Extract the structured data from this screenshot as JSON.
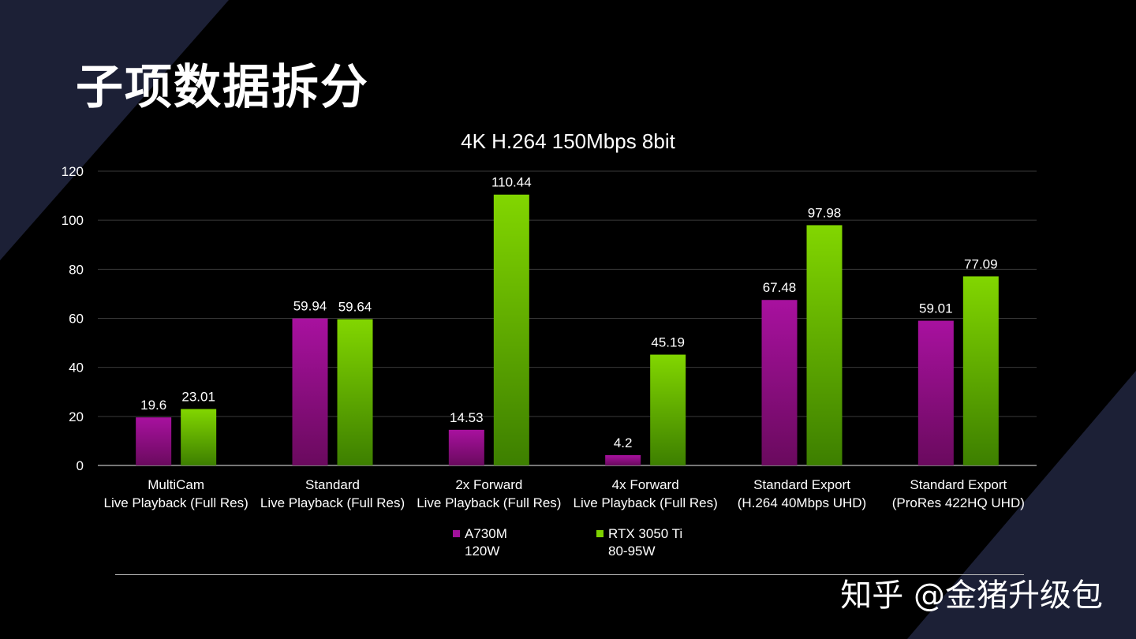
{
  "page_title": "子项数据拆分",
  "watermark": "知乎 @金猪升级包",
  "colors": {
    "background": "#000000",
    "decor_shape": "#1c2036",
    "series_a": "#a0109a",
    "series_b": "#7ed100",
    "grid": "#3a3a3a"
  },
  "legend": [
    {
      "line1": "A730M",
      "line2": "120W",
      "color": "#a0109a"
    },
    {
      "line1": "RTX 3050 Ti",
      "line2": "80-95W",
      "color": "#7ed100"
    }
  ],
  "chart_data": {
    "type": "bar",
    "title": "4K H.264 150Mbps 8bit",
    "xlabel": "",
    "ylabel": "",
    "ylim": [
      0,
      120
    ],
    "yticks": [
      0,
      20,
      40,
      60,
      80,
      100,
      120
    ],
    "grid": true,
    "legend_position": "bottom",
    "categories": [
      [
        "MultiCam",
        "Live Playback (Full Res)"
      ],
      [
        "Standard",
        "Live Playback (Full Res)"
      ],
      [
        "2x Forward",
        "Live Playback (Full Res)"
      ],
      [
        "4x Forward",
        "Live Playback (Full Res)"
      ],
      [
        "Standard Export",
        "(H.264 40Mbps UHD)"
      ],
      [
        "Standard Export",
        "(ProRes 422HQ UHD)"
      ]
    ],
    "series": [
      {
        "name": "A730M 120W",
        "values": [
          19.6,
          59.94,
          14.53,
          4.2,
          67.48,
          59.01
        ],
        "labels": [
          "19.6",
          "59.94",
          "14.53",
          "4.2",
          "67.48",
          "59.01"
        ]
      },
      {
        "name": "RTX 3050 Ti 80-95W",
        "values": [
          23.01,
          59.64,
          110.44,
          45.19,
          97.98,
          77.09
        ],
        "labels": [
          "23.01",
          "59.64",
          "110.44",
          "45.19",
          "97.98",
          "77.09"
        ]
      }
    ]
  }
}
